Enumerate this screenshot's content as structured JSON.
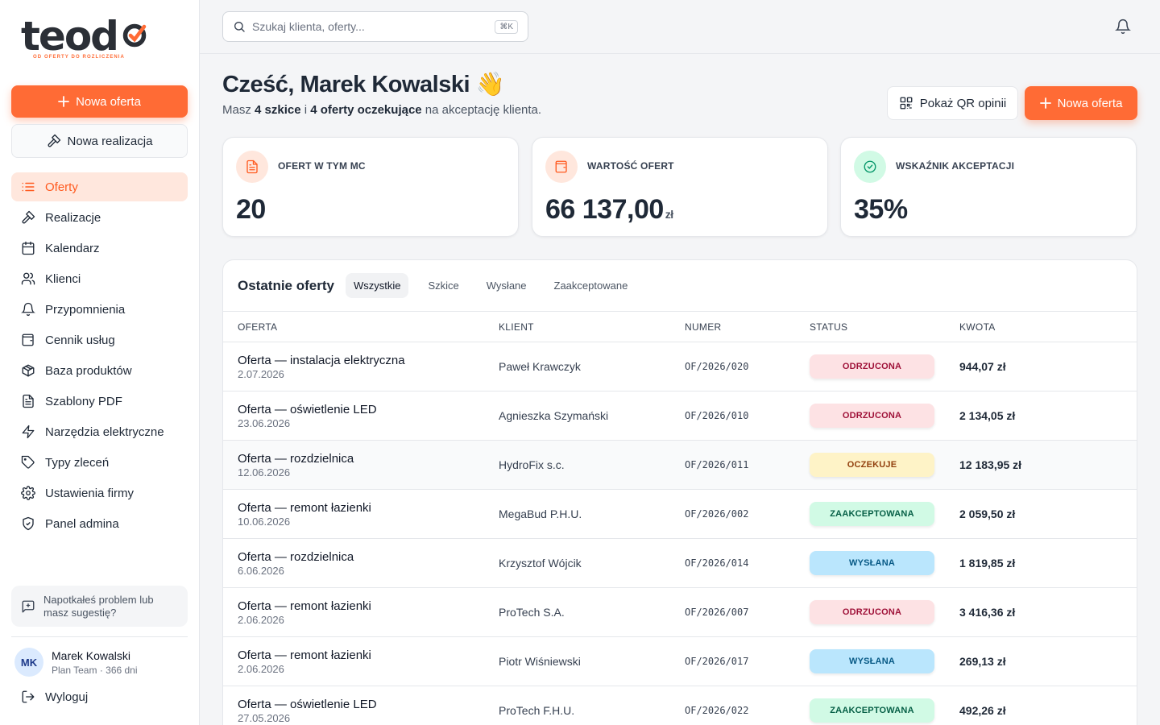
{
  "brand": {
    "name": "teodo",
    "tagline": "OD OFERTY DO ROZLICZENIA",
    "accent": "#ff6b35"
  },
  "sidebar": {
    "new_offer": "Nowa oferta",
    "new_realization": "Nowa realizacja",
    "items": [
      {
        "label": "Oferty",
        "icon": "list-icon",
        "active": true
      },
      {
        "label": "Realizacje",
        "icon": "hammer-icon"
      },
      {
        "label": "Kalendarz",
        "icon": "calendar-icon"
      },
      {
        "label": "Klienci",
        "icon": "users-icon"
      },
      {
        "label": "Przypomnienia",
        "icon": "bell-icon"
      },
      {
        "label": "Cennik usług",
        "icon": "wallet-icon"
      },
      {
        "label": "Baza produktów",
        "icon": "box-icon"
      },
      {
        "label": "Szablony PDF",
        "icon": "file-icon"
      },
      {
        "label": "Narzędzia elektryczne",
        "icon": "bolt-icon"
      },
      {
        "label": "Typy zleceń",
        "icon": "tag-icon"
      },
      {
        "label": "Ustawienia firmy",
        "icon": "gear-icon"
      },
      {
        "label": "Panel admina",
        "icon": "shield-icon"
      }
    ],
    "feedback": "Napotkałeś problem lub masz sugestię?",
    "user": {
      "initials": "MK",
      "name": "Marek Kowalski",
      "plan": "Plan Team · 366 dni"
    },
    "logout": "Wyloguj"
  },
  "topbar": {
    "search_placeholder": "Szukaj klienta, oferty...",
    "shortcut": "⌘K"
  },
  "greeting": {
    "title": "Cześć, Marek Kowalski 👋",
    "pre": "Masz ",
    "drafts": "4 szkice",
    "mid": " i ",
    "pending": "4 oferty oczekujące",
    "post": " na akceptację klienta."
  },
  "actions": {
    "qr": "Pokaż QR opinii",
    "new_offer": "Nowa oferta"
  },
  "stats": [
    {
      "label": "OFERT W TYM MC",
      "value": "20",
      "unit": "",
      "icon": "document-icon"
    },
    {
      "label": "WARTOŚĆ OFERT",
      "value": "66 137,00",
      "unit": "zł",
      "icon": "wallet-icon"
    },
    {
      "label": "WSKAŹNIK AKCEPTACJI",
      "value": "35%",
      "unit": "",
      "icon": "check-circle-icon"
    }
  ],
  "offers": {
    "title": "Ostatnie oferty",
    "tabs": [
      "Wszystkie",
      "Szkice",
      "Wysłane",
      "Zaakceptowane"
    ],
    "columns": [
      "OFERTA",
      "KLIENT",
      "NUMER",
      "STATUS",
      "KWOTA"
    ],
    "rows": [
      {
        "title": "Oferta — instalacja elektryczna",
        "date": "2.07.2026",
        "client": "Paweł Krawczyk",
        "number": "OF/2026/020",
        "status": "ODRZUCONA",
        "amount": "944,07 zł"
      },
      {
        "title": "Oferta — oświetlenie LED",
        "date": "23.06.2026",
        "client": "Agnieszka Szymański",
        "number": "OF/2026/010",
        "status": "ODRZUCONA",
        "amount": "2 134,05 zł"
      },
      {
        "title": "Oferta — rozdzielnica",
        "date": "12.06.2026",
        "client": "HydroFix s.c.",
        "number": "OF/2026/011",
        "status": "OCZEKUJE",
        "amount": "12 183,95 zł"
      },
      {
        "title": "Oferta — remont łazienki",
        "date": "10.06.2026",
        "client": "MegaBud P.H.U.",
        "number": "OF/2026/002",
        "status": "ZAAKCEPTOWANA",
        "amount": "2 059,50 zł"
      },
      {
        "title": "Oferta — rozdzielnica",
        "date": "6.06.2026",
        "client": "Krzysztof Wójcik",
        "number": "OF/2026/014",
        "status": "WYSŁANA",
        "amount": "1 819,85 zł"
      },
      {
        "title": "Oferta — remont łazienki",
        "date": "2.06.2026",
        "client": "ProTech S.A.",
        "number": "OF/2026/007",
        "status": "ODRZUCONA",
        "amount": "3 416,36 zł"
      },
      {
        "title": "Oferta — remont łazienki",
        "date": "2.06.2026",
        "client": "Piotr Wiśniewski",
        "number": "OF/2026/017",
        "status": "WYSŁANA",
        "amount": "269,13 zł"
      },
      {
        "title": "Oferta — oświetlenie LED",
        "date": "27.05.2026",
        "client": "ProTech F.H.U.",
        "number": "OF/2026/022",
        "status": "ZAAKCEPTOWANA",
        "amount": "492,26 zł"
      }
    ]
  }
}
